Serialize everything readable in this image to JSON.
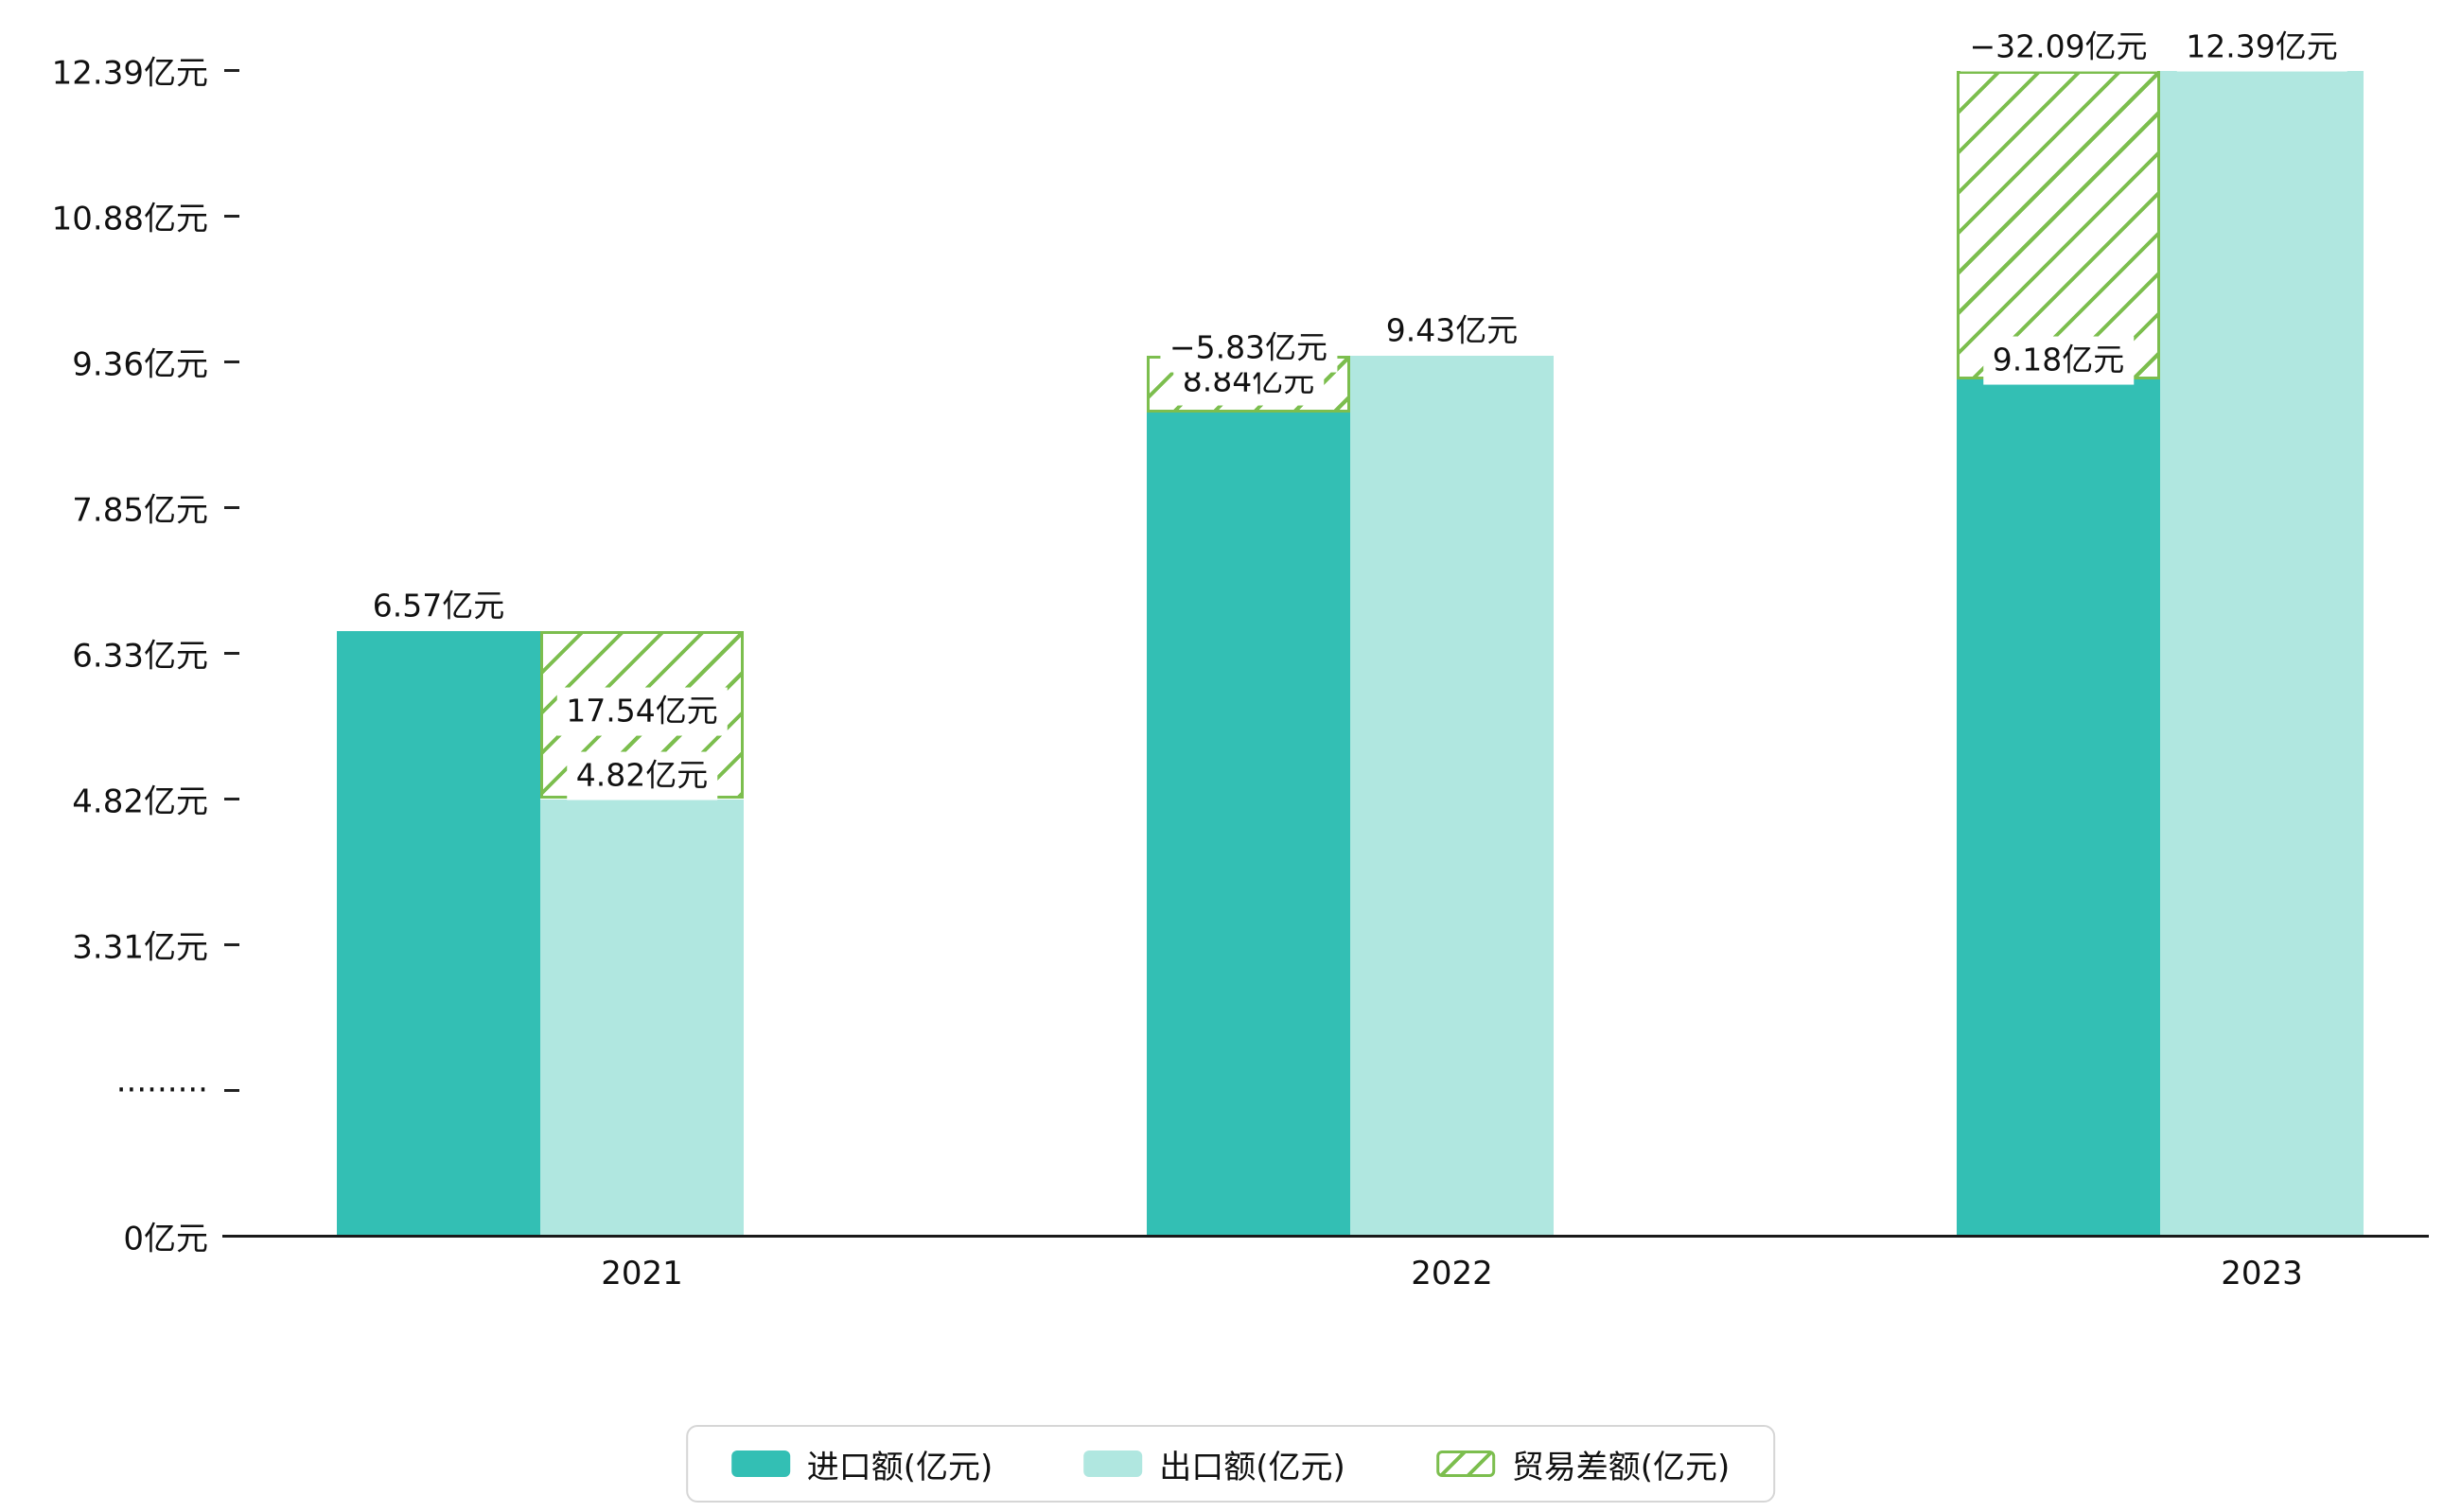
{
  "chart_data": {
    "type": "bar",
    "title": "",
    "xlabel": "",
    "ylabel": "",
    "unit": "亿元",
    "categories": [
      "2021",
      "2022",
      "2023"
    ],
    "series": [
      {
        "name": "进口额(亿元)",
        "role": "import",
        "values": [
          6.57,
          8.84,
          9.18
        ],
        "labels": [
          "6.57亿元",
          "8.84亿元",
          "9.18亿元"
        ],
        "color": "#33bfb4",
        "style": "solid"
      },
      {
        "name": "出口额(亿元)",
        "role": "export",
        "values": [
          4.82,
          9.43,
          12.39
        ],
        "labels": [
          "4.82亿元",
          "9.43亿元",
          "12.39亿元"
        ],
        "color": "#b0e7e0",
        "style": "solid"
      },
      {
        "name": "贸易差额(亿元)",
        "role": "diff",
        "values": [
          17.54,
          -5.83,
          -32.09
        ],
        "labels": [
          "17.54亿元",
          "−5.83亿元",
          "−32.09亿元"
        ],
        "color": "#7cbe4e",
        "style": "diagonal-hatch"
      }
    ],
    "y_axis": {
      "tick_labels": [
        "0亿元",
        "·········",
        "3.31亿元",
        "4.82亿元",
        "6.33亿元",
        "7.85亿元",
        "9.36亿元",
        "10.88亿元",
        "12.39亿元"
      ],
      "tick_values": [
        0,
        null,
        3.31,
        4.82,
        6.33,
        7.85,
        9.36,
        10.88,
        12.39
      ],
      "axis_break": true,
      "axis_break_between": [
        0,
        3.31
      ],
      "ylim": [
        0,
        12.39
      ]
    },
    "legend": {
      "position": "bottom-center",
      "items": [
        {
          "label": "进口额(亿元)",
          "series_role": "import",
          "swatch": "solid-teal"
        },
        {
          "label": "出口额(亿元)",
          "series_role": "export",
          "swatch": "solid-light-cyan"
        },
        {
          "label": "贸易差额(亿元)",
          "series_role": "diff",
          "swatch": "white-green-diagonal-hatch"
        }
      ]
    },
    "colors": {
      "import": "#33bfb4",
      "export": "#b0e7e0",
      "diff_line": "#7cbe4e",
      "axis": "#1a1a1a",
      "text": "#111111",
      "background": "#ffffff"
    },
    "grid": "off"
  }
}
